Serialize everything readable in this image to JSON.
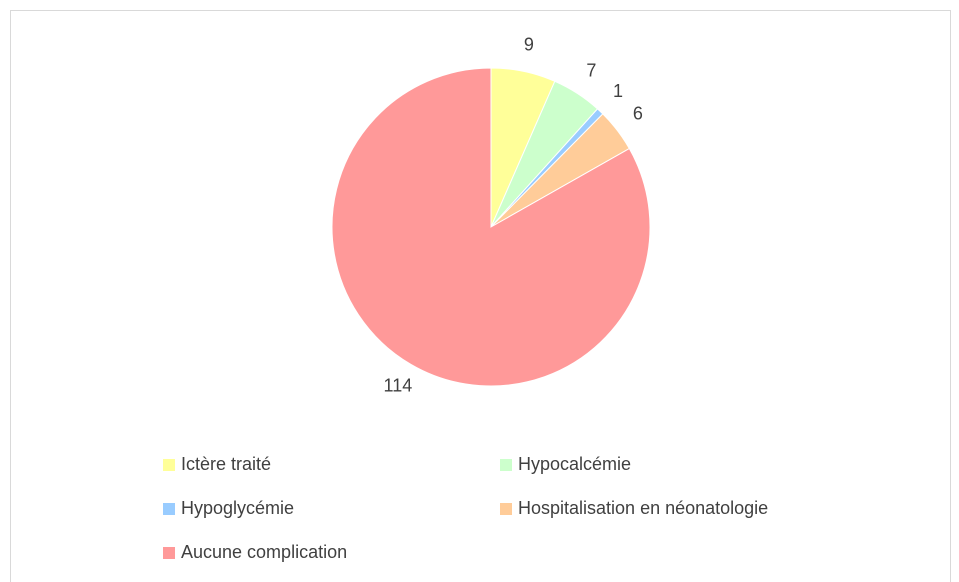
{
  "chart_data": {
    "type": "pie",
    "categories": [
      "Ictère traité",
      "Hypocalcémie",
      "Hypoglycémie",
      "Hospitalisation en néonatologie",
      "Aucune complication"
    ],
    "values": [
      9,
      7,
      1,
      6,
      114
    ],
    "colors": [
      "#ffff99",
      "#ccffcc",
      "#99ccff",
      "#ffcc99",
      "#ff9999"
    ],
    "legend": "bottom"
  }
}
